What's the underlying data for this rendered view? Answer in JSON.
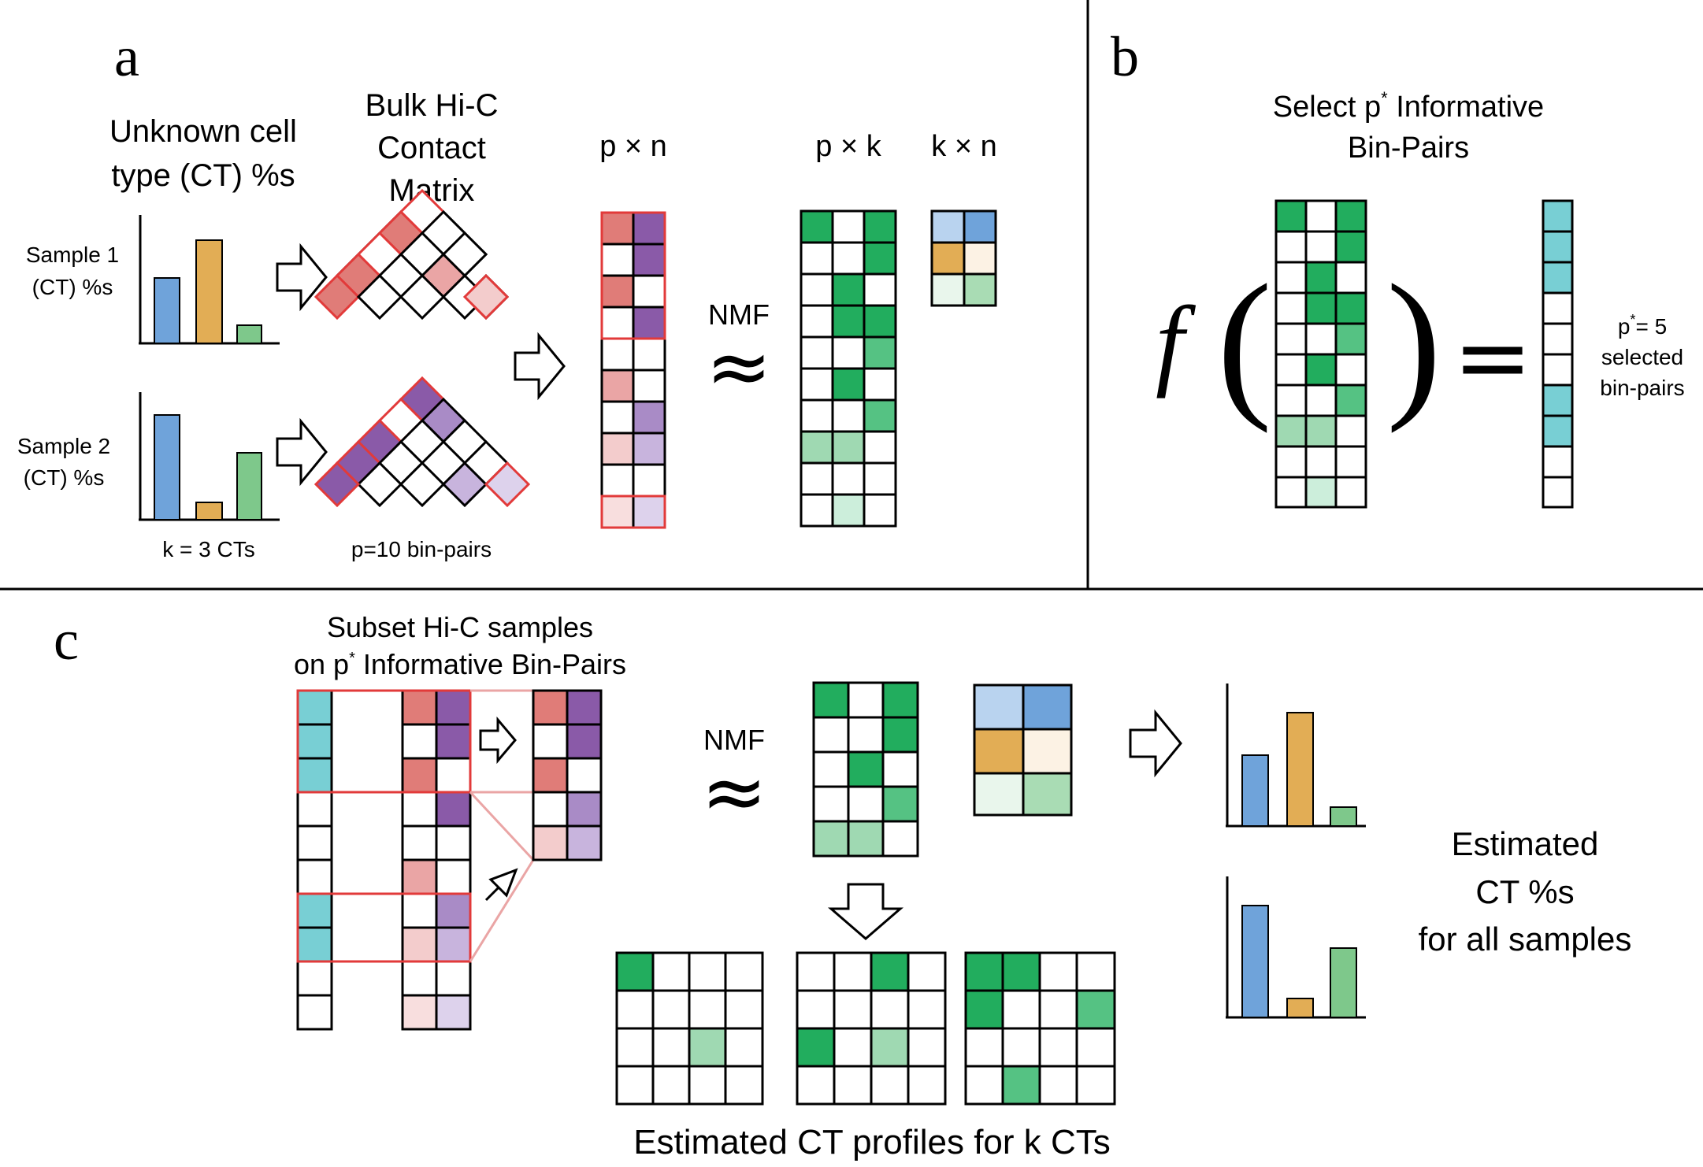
{
  "panels": {
    "a": {
      "letter": "a",
      "heading_ct": [
        "Unknown cell",
        "type (CT) %s"
      ],
      "heading_hic": [
        "Bulk Hi-C",
        "Contact",
        "Matrix"
      ],
      "sample1_label": [
        "Sample 1",
        "(CT) %s"
      ],
      "sample2_label": [
        "Sample 2",
        "(CT) %s"
      ],
      "k_label": "k = 3 CTs",
      "p_label": "p=10 bin-pairs",
      "dim_pn": "p × n",
      "dim_pk": "p × k",
      "dim_kn": "k × n",
      "nmf_label": "NMF",
      "approx_symbol": "≈"
    },
    "b": {
      "letter": "b",
      "heading": [
        "Select p",
        "Informative",
        "Bin-Pairs"
      ],
      "superscript": "*",
      "function_symbol": "f",
      "left_paren": "(",
      "right_paren": ")",
      "equals": "=",
      "pstar_label": [
        "p",
        "= 5",
        "selected",
        "bin-pairs"
      ]
    },
    "c": {
      "letter": "c",
      "heading": [
        "Subset Hi-C samples",
        "on p",
        "Informative Bin-Pairs"
      ],
      "superscript": "*",
      "nmf_label": "NMF",
      "approx_symbol": "≈",
      "estimated_pct": [
        "Estimated",
        "CT %s",
        "for all samples"
      ],
      "profiles_label": "Estimated CT profiles for k CTs"
    }
  },
  "colors": {
    "blue": "#6fa3da",
    "orange": "#e2ad55",
    "green_light": "#7ec88b",
    "green_dark": "#22ad5e",
    "green_mid": "#55c283",
    "green_pale": "#9fd9b2",
    "green_paler": "#cceedb",
    "red_dark": "#e07c78",
    "red_mid": "#eaa5a5",
    "red_light": "#f3cccc",
    "red_paler": "#f8dede",
    "purple_dark": "#8a5aa8",
    "purple_mid": "#a98bc6",
    "purple_light": "#c8b4dd",
    "purple_paler": "#ddd2ec",
    "cyan": "#78cfd4",
    "outline_red": "#e23a3a"
  },
  "bar_data": {
    "sample1": [
      0.6,
      0.95,
      0.15
    ],
    "sample2": [
      0.93,
      0.13,
      0.58
    ],
    "estimated1": [
      0.64,
      1.0,
      0.18
    ],
    "estimated2": [
      1.0,
      0.14,
      0.5
    ]
  }
}
